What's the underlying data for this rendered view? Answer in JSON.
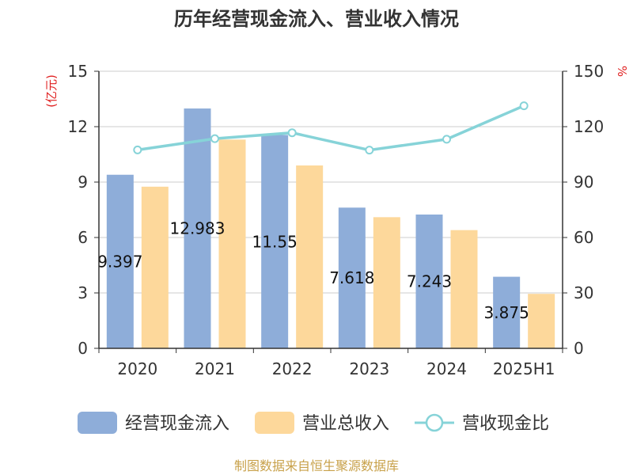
{
  "chart_data": {
    "type": "bar",
    "title": "历年经营现金流入、营业收入情况",
    "categories": [
      "2020",
      "2021",
      "2022",
      "2023",
      "2024",
      "2025H1"
    ],
    "series": [
      {
        "name": "经营现金流入",
        "type": "bar",
        "axis": "left",
        "color": "#8eadd9",
        "values": [
          9.397,
          12.983,
          11.55,
          7.618,
          7.243,
          3.875
        ]
      },
      {
        "name": "营业总收入",
        "type": "bar",
        "axis": "left",
        "color": "#fdd89b",
        "values": [
          8.75,
          11.3,
          9.9,
          7.1,
          6.4,
          2.95
        ]
      },
      {
        "name": "营收现金比",
        "type": "line",
        "axis": "right",
        "color": "#86d3d8",
        "values": [
          107.4,
          113.5,
          116.7,
          107.3,
          113.2,
          131.3
        ]
      }
    ],
    "data_labels": [
      "9.397",
      "12.983",
      "11.55",
      "7.618",
      "7.243",
      "3.875"
    ],
    "y_left": {
      "label": "(亿元)",
      "min": 0,
      "max": 15,
      "ticks": [
        "0",
        "3",
        "6",
        "9",
        "12",
        "15"
      ]
    },
    "y_right": {
      "label": "%",
      "min": 0,
      "max": 150,
      "ticks": [
        "0",
        "30",
        "60",
        "90",
        "120",
        "150"
      ]
    },
    "grid": true,
    "legend_position": "bottom"
  },
  "source": "制图数据来自恒生聚源数据库"
}
